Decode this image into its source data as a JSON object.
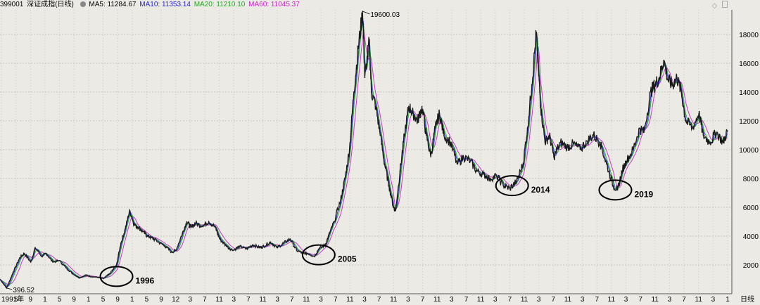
{
  "header": {
    "code": "399001",
    "name": "深证成指(日线)",
    "ma5": "MA5: 11284.67",
    "ma10": "MA10: 11353.14",
    "ma20": "MA20: 11210.10",
    "ma60": "MA60: 11045.37"
  },
  "colors": {
    "background": "#eceae4",
    "ma5": "#000000",
    "ma10": "#2323d0",
    "ma20": "#1eaa1e",
    "ma60": "#c823c8",
    "grid": "#c8c5bd",
    "price": "#1a1a1a"
  },
  "axis": {
    "right_label": "日线",
    "bottom_first": "1991年"
  },
  "chart_data": {
    "type": "line",
    "title": "399001 深证成指(日线)",
    "ylim": [
      0,
      19600
    ],
    "y_ticks": [
      2000,
      4000,
      6000,
      8000,
      10000,
      12000,
      14000,
      16000,
      18000
    ],
    "x_tick_labels": [
      "1991年",
      "5",
      "9",
      "1",
      "5",
      "9",
      "1",
      "5",
      "9",
      "1",
      "5",
      "9",
      "12",
      "3",
      "7",
      "11",
      "3",
      "7",
      "11",
      "3",
      "7",
      "11",
      "3",
      "7",
      "11",
      "3",
      "7",
      "11",
      "3",
      "7",
      "11",
      "3",
      "7",
      "11",
      "3",
      "7",
      "11",
      "3",
      "7",
      "11",
      "3",
      "7",
      "11",
      "3",
      "7",
      "11",
      "3",
      "7",
      "11",
      "3",
      "1"
    ],
    "grid": true,
    "series": [
      {
        "name": "深证成指",
        "x": [
          1991.0,
          1991.3,
          1991.6,
          1991.9,
          1992.1,
          1992.4,
          1992.6,
          1992.9,
          1993.1,
          1993.4,
          1993.7,
          1994.0,
          1994.3,
          1994.6,
          1994.9,
          1995.1,
          1995.4,
          1995.7,
          1996.0,
          1996.3,
          1996.5,
          1996.7,
          1996.9,
          1997.1,
          1997.3,
          1997.5,
          1997.7,
          1997.9,
          1998.2,
          1998.5,
          1998.8,
          1999.0,
          1999.3,
          1999.5,
          1999.7,
          1999.9,
          2000.2,
          2000.5,
          2000.8,
          2001.0,
          2001.3,
          2001.6,
          2001.9,
          2002.2,
          2002.5,
          2002.8,
          2003.0,
          2003.3,
          2003.6,
          2003.9,
          2004.2,
          2004.5,
          2004.8,
          2005.0,
          2005.3,
          2005.5,
          2005.8,
          2006.0,
          2006.2,
          2006.5,
          2006.7,
          2006.9,
          2007.1,
          2007.3,
          2007.5,
          2007.6,
          2007.8,
          2007.9,
          2008.1,
          2008.3,
          2008.5,
          2008.7,
          2008.9,
          2009.0,
          2009.2,
          2009.4,
          2009.6,
          2009.8,
          2010.0,
          2010.2,
          2010.4,
          2010.6,
          2010.8,
          2011.0,
          2011.2,
          2011.5,
          2011.8,
          2012.1,
          2012.4,
          2012.7,
          2013.0,
          2013.3,
          2013.6,
          2013.9,
          2014.2,
          2014.5,
          2014.8,
          2015.0,
          2015.2,
          2015.4,
          2015.5,
          2015.6,
          2015.8,
          2016.0,
          2016.2,
          2016.5,
          2016.8,
          2017.1,
          2017.4,
          2017.7,
          2018.0,
          2018.3,
          2018.6,
          2018.9,
          2019.1,
          2019.3,
          2019.5,
          2019.8,
          2020.1,
          2020.3,
          2020.6,
          2020.8,
          2021.0,
          2021.2,
          2021.4,
          2021.6,
          2021.8,
          2022.0,
          2022.2,
          2022.5,
          2022.8,
          2023.0,
          2023.3,
          2023.6,
          2023.9,
          2024.1
        ],
        "values": [
          1000,
          396.52,
          1500,
          2500,
          2800,
          2200,
          3200,
          2600,
          2800,
          2200,
          2300,
          1800,
          1400,
          1100,
          1300,
          1200,
          1150,
          1050,
          1400,
          2000,
          3500,
          4500,
          5800,
          4800,
          4600,
          4300,
          4000,
          3900,
          3600,
          3300,
          2900,
          3000,
          4200,
          5000,
          4600,
          4900,
          4700,
          5000,
          4600,
          3800,
          3300,
          3000,
          3300,
          3100,
          3400,
          3200,
          3300,
          3600,
          3200,
          3500,
          3800,
          3000,
          2800,
          2800,
          2600,
          3100,
          3400,
          4200,
          5000,
          6500,
          8000,
          10000,
          14000,
          17000,
          19600.03,
          15000,
          17500,
          14000,
          13000,
          11000,
          9000,
          7500,
          6000,
          5800,
          8500,
          11000,
          13000,
          12500,
          12000,
          13000,
          11000,
          9500,
          11500,
          12500,
          11000,
          10500,
          9000,
          9500,
          9200,
          8500,
          8300,
          8000,
          8200,
          7500,
          7300,
          7800,
          9000,
          11500,
          14500,
          18100,
          15500,
          13000,
          10500,
          11000,
          9500,
          10500,
          10200,
          10400,
          10000,
          10600,
          11000,
          10500,
          9000,
          7500,
          7200,
          8500,
          9200,
          10000,
          11500,
          11200,
          14000,
          14500,
          15000,
          16200,
          14800,
          14500,
          15000,
          14000,
          12000,
          11500,
          12500,
          11000,
          10500,
          11200,
          10500,
          11300
        ]
      }
    ],
    "annotations": [
      {
        "x": 1991.3,
        "y": 396.52,
        "text": "396.52"
      },
      {
        "x": 2007.5,
        "y": 19600.03,
        "text": "19600.03"
      },
      {
        "x": 1996.3,
        "text": "1996"
      },
      {
        "x": 2005.5,
        "text": "2005"
      },
      {
        "x": 2014.3,
        "text": "2014"
      },
      {
        "x": 2019.0,
        "text": "2019"
      }
    ]
  }
}
